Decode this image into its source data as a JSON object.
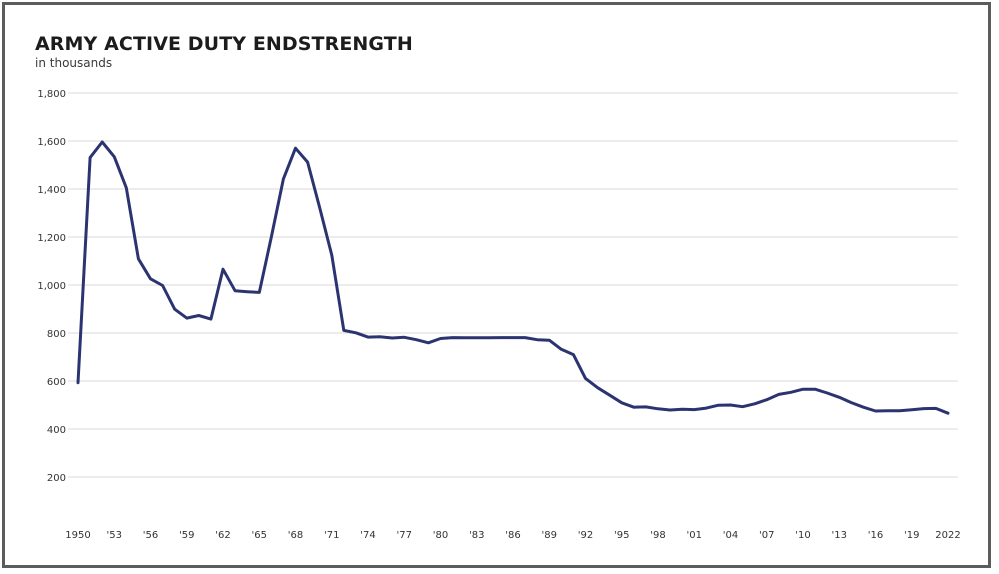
{
  "chart_data": {
    "type": "line",
    "title": "ARMY ACTIVE DUTY ENDSTRENGTH",
    "subtitle": "in thousands",
    "xlabel": "",
    "ylabel": "in thousands",
    "ylim": [
      0,
      1800
    ],
    "xlim": [
      1950,
      2022
    ],
    "grid": true,
    "legend": null,
    "y_ticks": [
      200,
      400,
      600,
      800,
      1000,
      1200,
      1400,
      1600,
      1800
    ],
    "y_tick_labels": [
      "200",
      "400",
      "600",
      "800",
      "1,000",
      "1,200",
      "1,400",
      "1,600",
      "1,800"
    ],
    "x_ticks": [
      1950,
      1953,
      1956,
      1959,
      1962,
      1965,
      1968,
      1971,
      1974,
      1977,
      1980,
      1983,
      1986,
      1989,
      1992,
      1995,
      1998,
      2001,
      2004,
      2007,
      2010,
      2013,
      2016,
      2019,
      2022
    ],
    "x_tick_labels": [
      "1950",
      "'53",
      "'56",
      "'59",
      "'62",
      "'65",
      "'68",
      "'71",
      "'74",
      "'77",
      "'80",
      "'83",
      "'86",
      "'89",
      "'92",
      "'95",
      "'98",
      "'01",
      "'04",
      "'07",
      "'10",
      "'13",
      "'16",
      "'19",
      "2022"
    ],
    "series": [
      {
        "name": "Army active duty endstrength",
        "color": "#2b3470",
        "x": [
          1950,
          1951,
          1952,
          1953,
          1954,
          1955,
          1956,
          1957,
          1958,
          1959,
          1960,
          1961,
          1962,
          1963,
          1964,
          1965,
          1966,
          1967,
          1968,
          1969,
          1970,
          1971,
          1972,
          1973,
          1974,
          1975,
          1976,
          1977,
          1978,
          1979,
          1980,
          1981,
          1982,
          1983,
          1984,
          1985,
          1986,
          1987,
          1988,
          1989,
          1990,
          1991,
          1992,
          1993,
          1994,
          1995,
          1996,
          1997,
          1998,
          1999,
          2000,
          2001,
          2002,
          2003,
          2004,
          2005,
          2006,
          2007,
          2008,
          2009,
          2010,
          2011,
          2012,
          2013,
          2014,
          2015,
          2016,
          2017,
          2018,
          2019,
          2020,
          2021,
          2022
        ],
        "values": [
          593,
          1531,
          1596,
          1534,
          1405,
          1109,
          1026,
          998,
          899,
          862,
          873,
          858,
          1066,
          976,
          972,
          969,
          1199,
          1442,
          1570,
          1512,
          1322,
          1124,
          811,
          801,
          783,
          784,
          779,
          782,
          772,
          759,
          777,
          781,
          780,
          780,
          780,
          781,
          781,
          781,
          772,
          770,
          732,
          710,
          611,
          572,
          541,
          509,
          491,
          492,
          484,
          479,
          482,
          481,
          487,
          499,
          500,
          493,
          505,
          522,
          544,
          553,
          566,
          566,
          550,
          532,
          510,
          491,
          475,
          476,
          476,
          480,
          485,
          486,
          466
        ]
      }
    ]
  }
}
